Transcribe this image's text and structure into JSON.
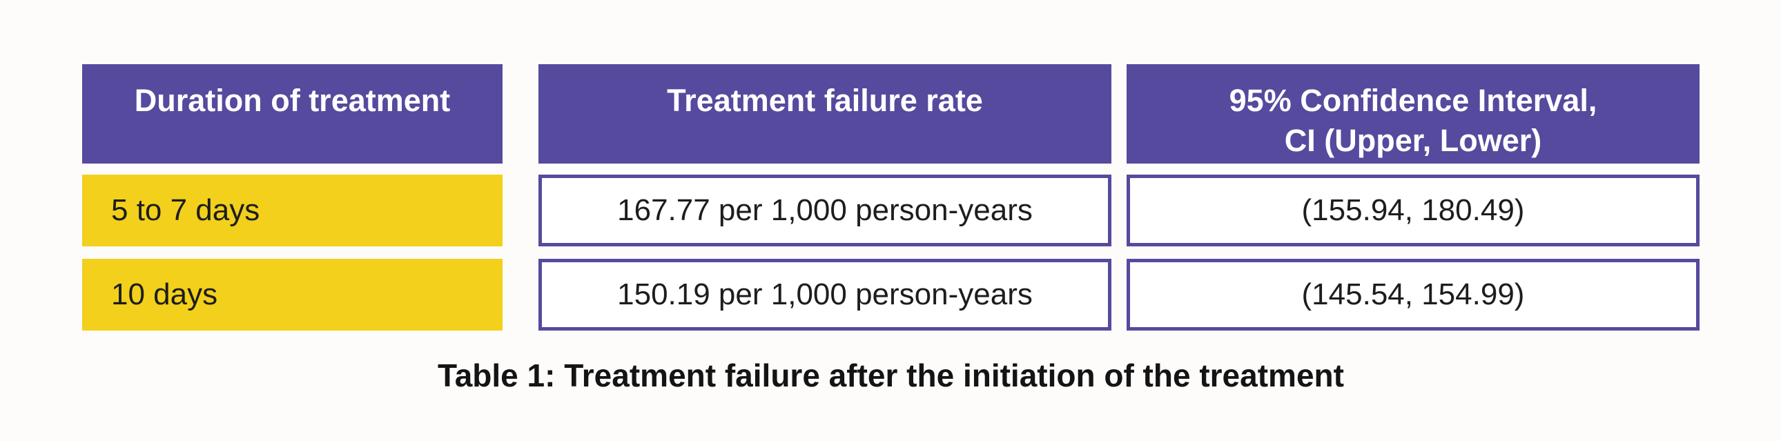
{
  "caption": "Table 1: Treatment failure after the initiation of the treatment",
  "chart_data": {
    "type": "table",
    "title": "Table 1: Treatment failure after the initiation of the treatment",
    "columns": [
      "Duration of treatment",
      "Treatment failure rate",
      "95% Confidence Interval,\nCI (Upper, Lower)"
    ],
    "rows": [
      [
        "5 to 7 days",
        "167.77 per 1,000 person-years",
        "(155.94, 180.49)"
      ],
      [
        "10 days",
        "150.19 per 1,000 person-years",
        "(145.54, 154.99)"
      ]
    ],
    "values": {
      "failure_rate_per_1000_person_years": [
        167.77,
        150.19
      ],
      "confidence_intervals": [
        [
          155.94,
          180.49
        ],
        [
          145.54,
          154.99
        ]
      ]
    },
    "legend_position": "none",
    "grid": false
  },
  "colors": {
    "header_bg": "#554A9E",
    "header_text": "#FFFFFF",
    "row_label_bg": "#F2D01B",
    "cell_border": "#554A9E",
    "body_text": "#1D1D1D",
    "page_bg": "#FDFCFA"
  }
}
